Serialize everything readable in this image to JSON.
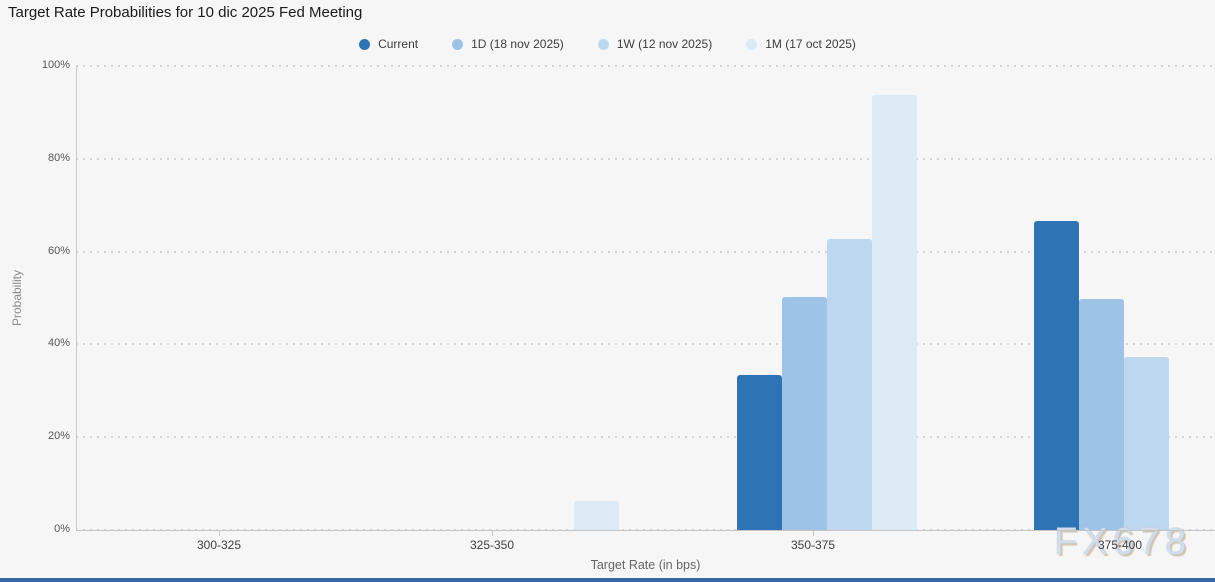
{
  "title": "Target Rate Probabilities for 10 dic 2025 Fed Meeting",
  "watermark": "FX678",
  "bottom_strip_color": "#33679e",
  "background_color": "#f6f6f6",
  "chart_data": {
    "type": "bar",
    "title": "Target Rate Probabilities for 10 dic 2025 Fed Meeting",
    "categories": [
      "300-325",
      "325-350",
      "350-375",
      "375-400"
    ],
    "series": [
      {
        "name": "Current",
        "color": "#2e74b5",
        "values": [
          0,
          0,
          33.5,
          66.5
        ]
      },
      {
        "name": "1D (18 nov 2025)",
        "color": "#9dc3e6",
        "values": [
          0,
          0,
          50.2,
          49.8
        ]
      },
      {
        "name": "1W (12 nov 2025)",
        "color": "#bdd7ee",
        "values": [
          0,
          0,
          62.8,
          37.2
        ]
      },
      {
        "name": "1M (17 oct 2025)",
        "color": "#dceaf6",
        "values": [
          0,
          6.3,
          93.7,
          0
        ]
      }
    ],
    "xlabel": "Target Rate (in bps)",
    "ylabel": "Probability",
    "ylim": [
      0,
      100
    ],
    "yticks": [
      "0%",
      "20%",
      "40%",
      "60%",
      "80%",
      "100%"
    ],
    "grid": "horizontal-dotted",
    "legend_position": "top-center"
  }
}
